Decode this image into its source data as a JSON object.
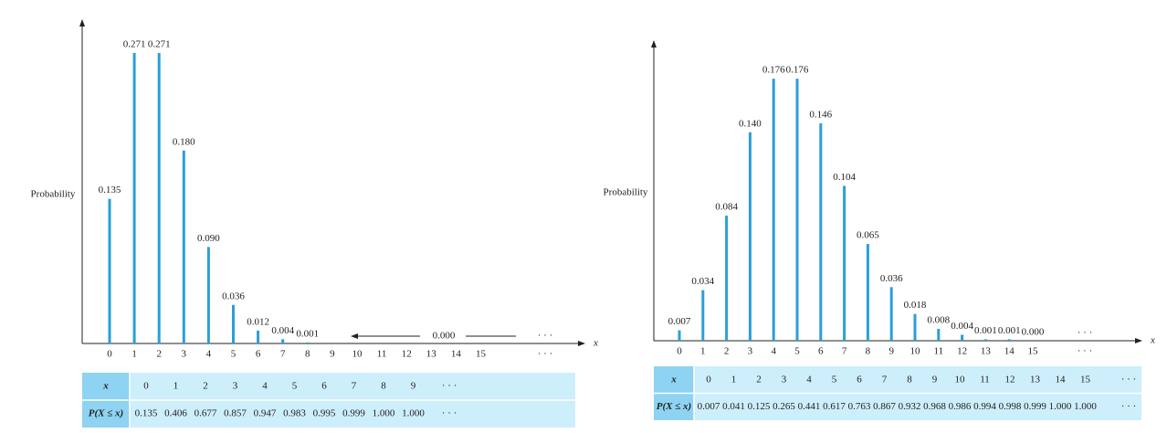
{
  "chart_data": [
    {
      "type": "bar",
      "ylabel": "Probability",
      "xlabel": "x",
      "categories": [
        "0",
        "1",
        "2",
        "3",
        "4",
        "5",
        "6",
        "7",
        "8",
        "9",
        "10",
        "11",
        "12",
        "13",
        "14",
        "15",
        "· · ·"
      ],
      "values": [
        0.135,
        0.271,
        0.271,
        0.18,
        0.09,
        0.036,
        0.012,
        0.004,
        0.001,
        null,
        null,
        null,
        null,
        null,
        null,
        null,
        null
      ],
      "value_labels": [
        "0.135",
        "0.271",
        "0.271",
        "0.180",
        "0.090",
        "0.036",
        "0.012",
        "0.004",
        "0.001",
        null,
        null,
        null,
        null,
        null,
        null,
        null,
        null
      ],
      "annotations": [
        "0.000",
        "· · ·"
      ],
      "color": "#2a9fd8",
      "ylim": [
        0,
        0.3
      ]
    },
    {
      "type": "bar",
      "ylabel": "Probability",
      "xlabel": "x",
      "categories": [
        "0",
        "1",
        "2",
        "3",
        "4",
        "5",
        "6",
        "7",
        "8",
        "9",
        "10",
        "11",
        "12",
        "13",
        "14",
        "15",
        "· · ·"
      ],
      "values": [
        0.007,
        0.034,
        0.084,
        0.14,
        0.176,
        0.176,
        0.146,
        0.104,
        0.065,
        0.036,
        0.018,
        0.008,
        0.004,
        0.001,
        0.001,
        0.0,
        null
      ],
      "value_labels": [
        "0.007",
        "0.034",
        "0.084",
        "0.140",
        "0.176",
        "0.176",
        "0.146",
        "0.104",
        "0.065",
        "0.036",
        "0.018",
        "0.008",
        "0.004",
        "0.001",
        "0.001",
        "0.000",
        null
      ],
      "annotations": [
        "· · ·"
      ],
      "color": "#2a9fd8",
      "ylim": [
        0,
        0.2
      ]
    }
  ],
  "tables": [
    {
      "header_label": "x",
      "row_label": "P(X ≤ x)",
      "columns": [
        "0",
        "1",
        "2",
        "3",
        "4",
        "5",
        "6",
        "7",
        "8",
        "9",
        "· · ·"
      ],
      "values": [
        "0.135",
        "0.406",
        "0.677",
        "0.857",
        "0.947",
        "0.983",
        "0.995",
        "0.999",
        "1.000",
        "1.000",
        "· · ·"
      ]
    },
    {
      "header_label": "x",
      "row_label": "P(X ≤ x)",
      "columns": [
        "0",
        "1",
        "2",
        "3",
        "4",
        "5",
        "6",
        "7",
        "8",
        "9",
        "10",
        "11",
        "12",
        "13",
        "14",
        "15",
        "· · ·"
      ],
      "values": [
        "0.007",
        "0.041",
        "0.125",
        "0.265",
        "0.441",
        "0.617",
        "0.763",
        "0.867",
        "0.932",
        "0.968",
        "0.986",
        "0.994",
        "0.998",
        "0.999",
        "1.000",
        "1.000",
        "· · ·"
      ]
    }
  ]
}
